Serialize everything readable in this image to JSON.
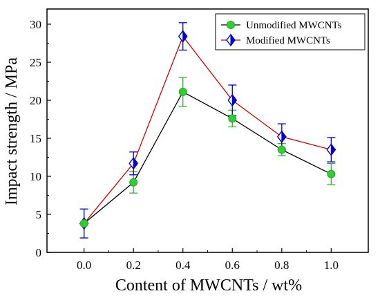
{
  "chart_data": {
    "type": "line",
    "xlabel": "Content of MWCNTs / wt%",
    "ylabel": "Impact strength / MPa",
    "xlim": [
      -0.15,
      1.15
    ],
    "ylim": [
      0,
      32
    ],
    "x_ticks": [
      "0.0",
      "0.2",
      "0.4",
      "0.6",
      "0.8",
      "1.0"
    ],
    "y_ticks": [
      "0",
      "5",
      "10",
      "15",
      "20",
      "25",
      "30"
    ],
    "grid": false,
    "legend_position": "top-right",
    "x": [
      0.0,
      0.2,
      0.4,
      0.6,
      0.8,
      1.0
    ],
    "series": [
      {
        "name": "Unmodified MWCNTs",
        "marker": "circle",
        "line_color": "#000000",
        "marker_color": "#33cc33",
        "values": [
          3.8,
          9.2,
          21.1,
          17.6,
          13.5,
          10.3
        ],
        "errors": [
          1.9,
          1.4,
          1.9,
          1.1,
          0.8,
          1.4
        ]
      },
      {
        "name": "Modified MWCNTs",
        "marker": "half-filled-diamond",
        "line_color": "#cc0000",
        "marker_color": "#0000cc",
        "values": [
          3.8,
          11.7,
          28.4,
          20.0,
          15.2,
          13.5
        ],
        "errors": [
          1.9,
          1.5,
          1.8,
          2.0,
          1.7,
          1.6
        ]
      }
    ]
  }
}
